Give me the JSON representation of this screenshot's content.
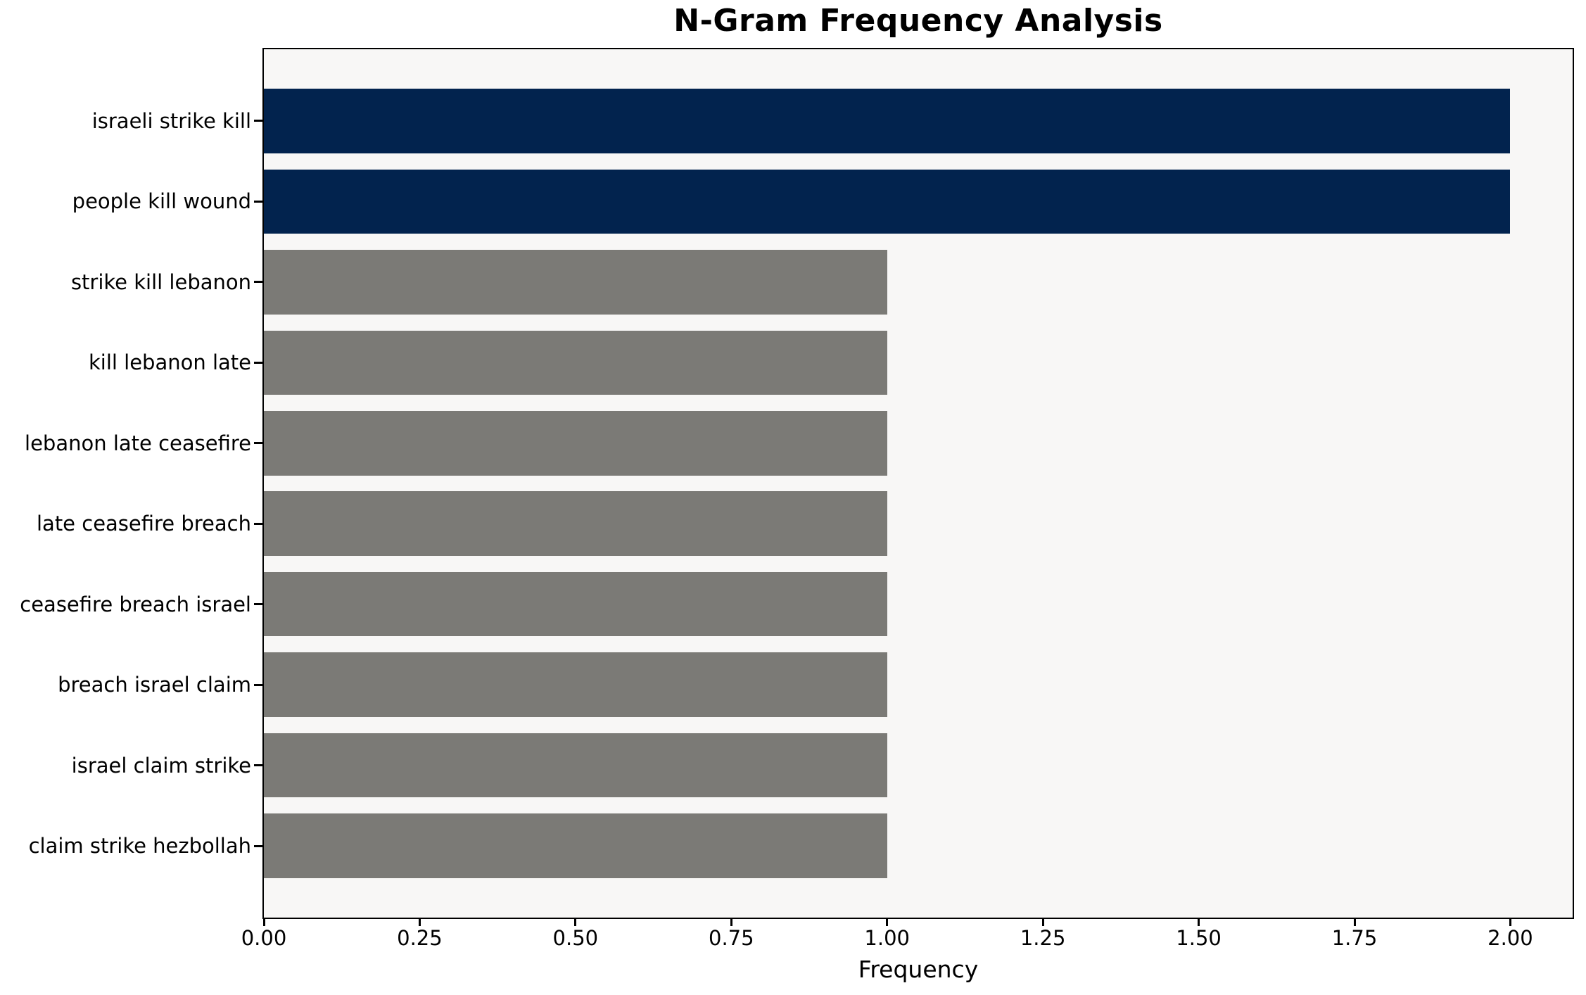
{
  "chart_data": {
    "type": "bar",
    "orientation": "horizontal",
    "title": "N-Gram Frequency Analysis",
    "xlabel": "Frequency",
    "ylabel": "",
    "categories": [
      "israeli strike kill",
      "people kill wound",
      "strike kill lebanon",
      "kill lebanon late",
      "lebanon late ceasefire",
      "late ceasefire breach",
      "ceasefire breach israel",
      "breach israel claim",
      "israel claim strike",
      "claim strike hezbollah"
    ],
    "values": [
      2,
      2,
      1,
      1,
      1,
      1,
      1,
      1,
      1,
      1
    ],
    "bar_colors": [
      "#02234e",
      "#02234e",
      "#7b7a76",
      "#7b7a76",
      "#7b7a76",
      "#7b7a76",
      "#7b7a76",
      "#7b7a76",
      "#7b7a76",
      "#7b7a76"
    ],
    "highlight_color": "#02234e",
    "default_color": "#7b7a76",
    "xlim": [
      0,
      2.1
    ],
    "xticks": [
      0,
      0.25,
      0.5,
      0.75,
      1.0,
      1.25,
      1.5,
      1.75,
      2.0
    ],
    "xtick_labels": [
      "0.00",
      "0.25",
      "0.50",
      "0.75",
      "1.00",
      "1.25",
      "1.50",
      "1.75",
      "2.00"
    ],
    "grid": false,
    "legend": false,
    "plot_bg_color": "#f8f7f6",
    "figure_bg_color": "#ffffff",
    "text_color": "#000000"
  }
}
